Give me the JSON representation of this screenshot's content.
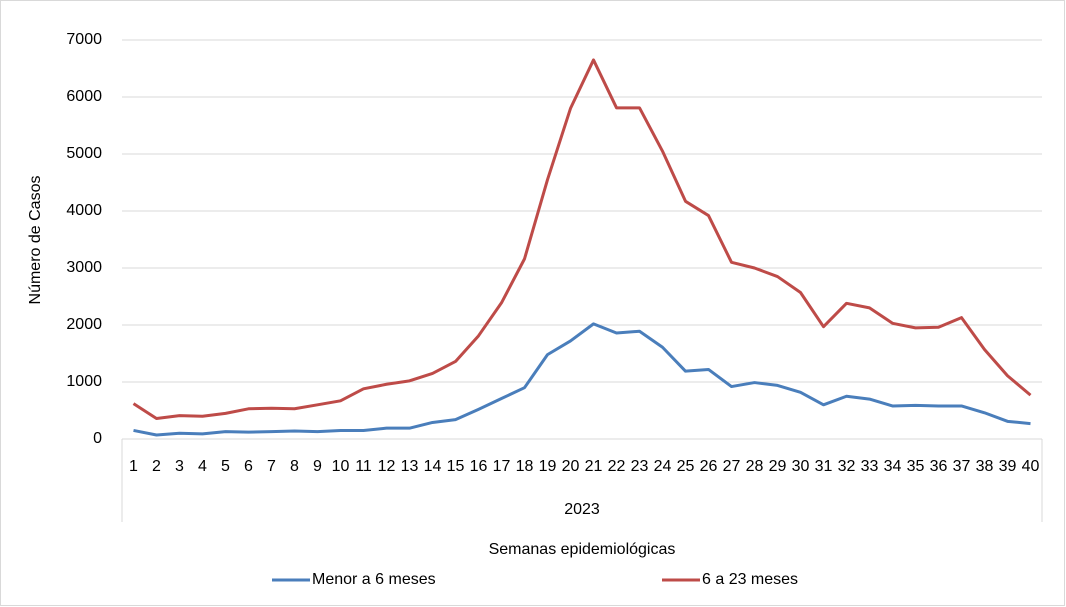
{
  "chart_data": {
    "type": "line",
    "y_label": "Número de Casos",
    "x_label": "Semanas epidemiológicas",
    "group_label": "2023",
    "categories": [
      "1",
      "2",
      "3",
      "4",
      "5",
      "6",
      "7",
      "8",
      "9",
      "10",
      "11",
      "12",
      "13",
      "14",
      "15",
      "16",
      "17",
      "18",
      "19",
      "20",
      "21",
      "22",
      "23",
      "24",
      "25",
      "26",
      "27",
      "28",
      "29",
      "30",
      "31",
      "32",
      "33",
      "34",
      "35",
      "36",
      "37",
      "38",
      "39",
      "40"
    ],
    "series": [
      {
        "name": "Menor a 6 meses",
        "color": "#4a7ebb",
        "values": [
          150,
          70,
          100,
          90,
          130,
          120,
          130,
          140,
          130,
          150,
          150,
          190,
          190,
          290,
          340,
          520,
          710,
          900,
          1480,
          1720,
          2020,
          1860,
          1890,
          1610,
          1190,
          1220,
          920,
          990,
          940,
          820,
          600,
          750,
          700,
          580,
          590,
          580,
          580,
          460,
          310,
          270
        ]
      },
      {
        "name": "6 a 23 meses",
        "color": "#be4b48",
        "values": [
          620,
          360,
          410,
          400,
          450,
          530,
          540,
          530,
          600,
          670,
          880,
          960,
          1020,
          1150,
          1360,
          1810,
          2390,
          3160,
          4550,
          5800,
          6650,
          5810,
          5810,
          5050,
          4170,
          3920,
          3100,
          3000,
          2850,
          2570,
          1970,
          2380,
          2300,
          2030,
          1950,
          1960,
          2130,
          1570,
          1110,
          770
        ]
      }
    ],
    "ylim": [
      0,
      7000
    ],
    "yticks": [
      0,
      1000,
      2000,
      3000,
      4000,
      5000,
      6000,
      7000
    ],
    "grid": true,
    "legend": "bottom"
  }
}
